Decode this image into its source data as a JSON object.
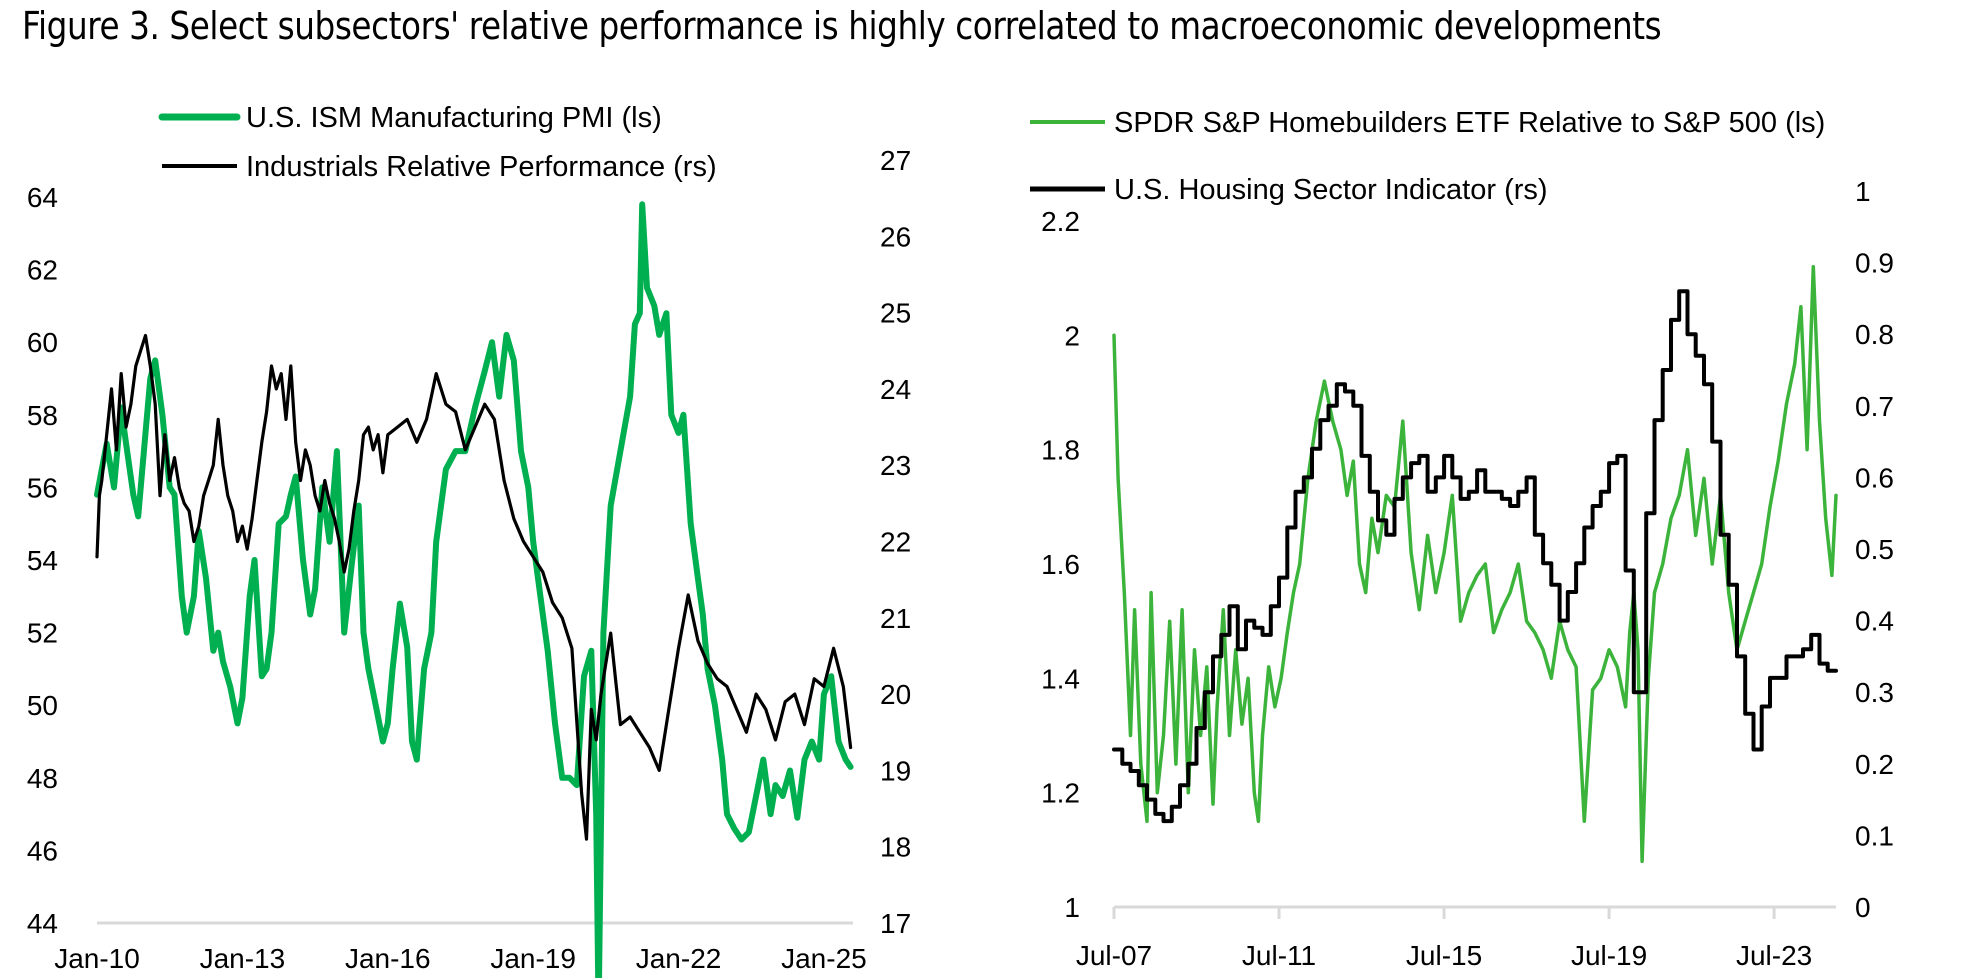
{
  "title": "Figure 3. Select subsectors' relative performance is highly correlated to macroeconomic developments",
  "colors": {
    "pmi_green": "#00B050",
    "homebuilders_green": "#3CB43C",
    "black": "#000000",
    "axis": "#D9D9D9"
  },
  "chart_data": [
    {
      "type": "line",
      "legend_position": "top",
      "x_tick_labels": [
        "Jan-10",
        "Jan-13",
        "Jan-16",
        "Jan-19",
        "Jan-22",
        "Jan-25"
      ],
      "x_range": [
        2010.0,
        2025.6
      ],
      "y_left": {
        "range": [
          44,
          64
        ],
        "ticks": [
          44,
          46,
          48,
          50,
          52,
          54,
          56,
          58,
          60,
          62,
          64
        ]
      },
      "y_right": {
        "range": [
          17,
          27
        ],
        "ticks": [
          17,
          18,
          19,
          20,
          21,
          22,
          23,
          24,
          25,
          26,
          27
        ]
      },
      "grid": false,
      "series": [
        {
          "name": "U.S. ISM Manufacturing PMI (ls)",
          "axis": "left",
          "color": "#00B050",
          "x": [
            2010.0,
            2010.1,
            2010.2,
            2010.35,
            2010.5,
            2010.6,
            2010.75,
            2010.85,
            2011.0,
            2011.1,
            2011.2,
            2011.35,
            2011.5,
            2011.6,
            2011.75,
            2011.85,
            2012.0,
            2012.1,
            2012.25,
            2012.4,
            2012.5,
            2012.6,
            2012.75,
            2012.9,
            2013.0,
            2013.15,
            2013.25,
            2013.4,
            2013.5,
            2013.6,
            2013.75,
            2013.9,
            2014.0,
            2014.1,
            2014.25,
            2014.4,
            2014.5,
            2014.65,
            2014.8,
            2014.95,
            2015.1,
            2015.25,
            2015.4,
            2015.5,
            2015.6,
            2015.75,
            2015.9,
            2016.0,
            2016.1,
            2016.25,
            2016.4,
            2016.5,
            2016.6,
            2016.75,
            2016.9,
            2017.0,
            2017.2,
            2017.4,
            2017.6,
            2017.8,
            2018.0,
            2018.15,
            2018.3,
            2018.45,
            2018.6,
            2018.75,
            2018.9,
            2019.0,
            2019.15,
            2019.3,
            2019.45,
            2019.6,
            2019.75,
            2019.9,
            2020.05,
            2020.2,
            2020.3,
            2020.35,
            2020.45,
            2020.6,
            2020.8,
            2021.0,
            2021.1,
            2021.2,
            2021.25,
            2021.35,
            2021.5,
            2021.6,
            2021.75,
            2021.85,
            2022.0,
            2022.1,
            2022.25,
            2022.4,
            2022.5,
            2022.6,
            2022.75,
            2022.9,
            2023.0,
            2023.15,
            2023.3,
            2023.45,
            2023.6,
            2023.75,
            2023.9,
            2024.0,
            2024.15,
            2024.3,
            2024.45,
            2024.6,
            2024.75,
            2024.9,
            2025.0,
            2025.15,
            2025.3,
            2025.45,
            2025.55
          ],
          "y": [
            55.8,
            56.5,
            57.2,
            56.0,
            58.2,
            57.2,
            55.8,
            55.2,
            57.5,
            59.0,
            59.5,
            58.0,
            56.0,
            55.8,
            53.0,
            52.0,
            53.0,
            54.8,
            53.5,
            51.5,
            52.0,
            51.2,
            50.5,
            49.5,
            50.2,
            53.0,
            54.0,
            50.8,
            51.0,
            52.0,
            55.0,
            55.2,
            55.8,
            56.3,
            54.0,
            52.5,
            53.2,
            56.0,
            54.5,
            57.0,
            52.0,
            53.8,
            55.5,
            52.0,
            51.0,
            50.0,
            49.0,
            49.5,
            51.0,
            52.8,
            51.6,
            49.0,
            48.5,
            51.0,
            52.0,
            54.5,
            56.5,
            57.0,
            57.0,
            58.2,
            59.2,
            60.0,
            58.5,
            60.2,
            59.5,
            57.0,
            56.0,
            54.5,
            53.0,
            51.5,
            49.5,
            48.0,
            48.0,
            47.8,
            50.8,
            51.5,
            47.0,
            41.5,
            52.0,
            55.5,
            57.0,
            58.5,
            60.5,
            60.8,
            63.8,
            61.5,
            61.0,
            60.2,
            60.8,
            58.0,
            57.5,
            58.0,
            55.0,
            53.5,
            52.5,
            51.0,
            50.0,
            48.5,
            47.0,
            46.6,
            46.3,
            46.5,
            47.5,
            48.5,
            47.0,
            47.8,
            47.5,
            48.2,
            46.9,
            48.5,
            49.0,
            48.5,
            50.3,
            50.8,
            49.0,
            48.5,
            48.3
          ]
        },
        {
          "name": "Industrials Relative Performance (rs)",
          "axis": "right",
          "color": "#000000",
          "x": [
            2010.0,
            2010.05,
            2010.1,
            2010.2,
            2010.3,
            2010.4,
            2010.5,
            2010.6,
            2010.7,
            2010.8,
            2010.9,
            2011.0,
            2011.1,
            2011.2,
            2011.3,
            2011.4,
            2011.5,
            2011.6,
            2011.7,
            2011.8,
            2011.9,
            2012.0,
            2012.1,
            2012.2,
            2012.3,
            2012.4,
            2012.5,
            2012.6,
            2012.7,
            2012.8,
            2012.9,
            2013.0,
            2013.1,
            2013.2,
            2013.3,
            2013.4,
            2013.5,
            2013.6,
            2013.7,
            2013.8,
            2013.9,
            2014.0,
            2014.1,
            2014.2,
            2014.3,
            2014.4,
            2014.5,
            2014.6,
            2014.7,
            2014.8,
            2014.9,
            2015.0,
            2015.1,
            2015.2,
            2015.3,
            2015.4,
            2015.5,
            2015.6,
            2015.7,
            2015.8,
            2015.9,
            2016.0,
            2016.2,
            2016.4,
            2016.6,
            2016.8,
            2017.0,
            2017.2,
            2017.4,
            2017.6,
            2017.8,
            2018.0,
            2018.2,
            2018.4,
            2018.6,
            2018.8,
            2019.0,
            2019.2,
            2019.4,
            2019.6,
            2019.8,
            2020.0,
            2020.1,
            2020.2,
            2020.3,
            2020.4,
            2020.5,
            2020.6,
            2020.7,
            2020.8,
            2021.0,
            2021.2,
            2021.4,
            2021.6,
            2021.8,
            2022.0,
            2022.2,
            2022.4,
            2022.6,
            2022.8,
            2023.0,
            2023.2,
            2023.4,
            2023.6,
            2023.8,
            2024.0,
            2024.2,
            2024.4,
            2024.6,
            2024.8,
            2025.0,
            2025.2,
            2025.4,
            2025.55
          ],
          "y": [
            21.8,
            22.6,
            22.8,
            23.4,
            24.0,
            23.2,
            24.2,
            23.5,
            23.8,
            24.3,
            24.5,
            24.7,
            24.3,
            23.8,
            22.6,
            23.4,
            22.8,
            23.1,
            22.7,
            22.5,
            22.4,
            22.0,
            22.2,
            22.6,
            22.8,
            23.0,
            23.6,
            23.0,
            22.6,
            22.4,
            22.0,
            22.2,
            21.9,
            22.3,
            22.8,
            23.3,
            23.7,
            24.3,
            24.0,
            24.2,
            23.6,
            24.3,
            23.3,
            22.8,
            23.2,
            23.0,
            22.6,
            22.4,
            22.8,
            22.5,
            22.3,
            22.0,
            21.6,
            21.9,
            22.4,
            22.8,
            23.4,
            23.5,
            23.2,
            23.4,
            22.9,
            23.4,
            23.5,
            23.6,
            23.3,
            23.6,
            24.2,
            23.8,
            23.7,
            23.2,
            23.5,
            23.8,
            23.6,
            22.8,
            22.3,
            22.0,
            21.8,
            21.6,
            21.2,
            21.0,
            20.6,
            18.7,
            18.1,
            19.8,
            19.4,
            20.0,
            20.4,
            20.8,
            20.2,
            19.6,
            19.7,
            19.5,
            19.3,
            19.0,
            19.8,
            20.6,
            21.3,
            20.7,
            20.4,
            20.2,
            20.1,
            19.8,
            19.5,
            20.0,
            19.8,
            19.4,
            19.9,
            20.0,
            19.6,
            20.2,
            20.1,
            20.6,
            20.1,
            19.3
          ]
        }
      ]
    },
    {
      "type": "line",
      "legend_position": "top",
      "x_tick_labels": [
        "Jul-07",
        "Jul-11",
        "Jul-15",
        "Jul-19",
        "Jul-23"
      ],
      "x_range": [
        2007.5,
        2025.0
      ],
      "y_left": {
        "range": [
          1,
          2.2
        ],
        "ticks": [
          1,
          1.2,
          1.4,
          1.6,
          1.8,
          2,
          2.2
        ]
      },
      "y_right": {
        "range": [
          0,
          1
        ],
        "ticks": [
          0,
          0.1,
          0.2,
          0.3,
          0.4,
          0.5,
          0.6,
          0.7,
          0.8,
          0.9,
          1
        ]
      },
      "grid": false,
      "series": [
        {
          "name": "SPDR S&P Homebuilders ETF Relative to S&P 500 (ls)",
          "axis": "left",
          "color": "#3CB43C",
          "x": [
            2007.5,
            2007.6,
            2007.75,
            2007.9,
            2008.0,
            2008.15,
            2008.3,
            2008.4,
            2008.55,
            2008.7,
            2008.85,
            2009.0,
            2009.15,
            2009.3,
            2009.45,
            2009.6,
            2009.75,
            2009.9,
            2010.0,
            2010.15,
            2010.3,
            2010.45,
            2010.6,
            2010.75,
            2010.9,
            2011.0,
            2011.1,
            2011.25,
            2011.4,
            2011.55,
            2011.7,
            2011.85,
            2012.0,
            2012.2,
            2012.4,
            2012.6,
            2012.8,
            2013.0,
            2013.15,
            2013.3,
            2013.45,
            2013.6,
            2013.75,
            2013.9,
            2014.1,
            2014.3,
            2014.5,
            2014.7,
            2014.9,
            2015.1,
            2015.3,
            2015.5,
            2015.7,
            2015.9,
            2016.1,
            2016.3,
            2016.5,
            2016.7,
            2016.9,
            2017.1,
            2017.3,
            2017.5,
            2017.7,
            2017.9,
            2018.1,
            2018.3,
            2018.5,
            2018.7,
            2018.9,
            2019.1,
            2019.3,
            2019.5,
            2019.7,
            2019.9,
            2020.0,
            2020.1,
            2020.2,
            2020.3,
            2020.45,
            2020.6,
            2020.8,
            2021.0,
            2021.2,
            2021.4,
            2021.6,
            2021.8,
            2022.0,
            2022.2,
            2022.4,
            2022.6,
            2022.8,
            2023.0,
            2023.2,
            2023.4,
            2023.6,
            2023.8,
            2024.0,
            2024.15,
            2024.3,
            2024.45,
            2024.6,
            2024.75,
            2024.9,
            2025.0
          ],
          "y": [
            2.0,
            1.75,
            1.55,
            1.3,
            1.52,
            1.25,
            1.15,
            1.55,
            1.2,
            1.3,
            1.5,
            1.25,
            1.52,
            1.2,
            1.45,
            1.3,
            1.42,
            1.18,
            1.35,
            1.52,
            1.3,
            1.45,
            1.32,
            1.4,
            1.2,
            1.15,
            1.3,
            1.42,
            1.35,
            1.4,
            1.48,
            1.55,
            1.6,
            1.75,
            1.85,
            1.92,
            1.85,
            1.8,
            1.72,
            1.78,
            1.6,
            1.55,
            1.68,
            1.62,
            1.72,
            1.7,
            1.85,
            1.62,
            1.52,
            1.65,
            1.55,
            1.62,
            1.72,
            1.5,
            1.55,
            1.58,
            1.6,
            1.48,
            1.52,
            1.55,
            1.6,
            1.5,
            1.48,
            1.45,
            1.4,
            1.5,
            1.45,
            1.42,
            1.15,
            1.38,
            1.4,
            1.45,
            1.42,
            1.35,
            1.48,
            1.55,
            1.45,
            1.08,
            1.4,
            1.55,
            1.6,
            1.68,
            1.72,
            1.8,
            1.65,
            1.75,
            1.6,
            1.72,
            1.55,
            1.45,
            1.5,
            1.55,
            1.6,
            1.7,
            1.78,
            1.88,
            1.95,
            2.05,
            1.8,
            2.12,
            1.85,
            1.68,
            1.58,
            1.72
          ]
        },
        {
          "name": "U.S. Housing Sector Indicator (rs)",
          "axis": "right",
          "color": "#000000",
          "x": [
            2007.5,
            2007.7,
            2007.9,
            2008.1,
            2008.3,
            2008.5,
            2008.7,
            2008.9,
            2009.1,
            2009.3,
            2009.5,
            2009.7,
            2009.9,
            2010.1,
            2010.3,
            2010.5,
            2010.7,
            2010.9,
            2011.1,
            2011.3,
            2011.5,
            2011.7,
            2011.9,
            2012.1,
            2012.3,
            2012.5,
            2012.7,
            2012.9,
            2013.1,
            2013.3,
            2013.5,
            2013.7,
            2013.9,
            2014.1,
            2014.3,
            2014.5,
            2014.7,
            2014.9,
            2015.1,
            2015.3,
            2015.5,
            2015.7,
            2015.9,
            2016.1,
            2016.3,
            2016.5,
            2016.7,
            2016.9,
            2017.1,
            2017.3,
            2017.5,
            2017.7,
            2017.9,
            2018.1,
            2018.3,
            2018.5,
            2018.7,
            2018.9,
            2019.1,
            2019.3,
            2019.5,
            2019.7,
            2019.9,
            2020.1,
            2020.2,
            2020.4,
            2020.6,
            2020.8,
            2021.0,
            2021.2,
            2021.4,
            2021.6,
            2021.8,
            2022.0,
            2022.2,
            2022.4,
            2022.6,
            2022.8,
            2023.0,
            2023.2,
            2023.4,
            2023.6,
            2023.8,
            2024.0,
            2024.2,
            2024.4,
            2024.6,
            2024.8,
            2025.0
          ],
          "y": [
            0.22,
            0.2,
            0.19,
            0.17,
            0.15,
            0.13,
            0.12,
            0.14,
            0.17,
            0.2,
            0.25,
            0.3,
            0.35,
            0.38,
            0.42,
            0.36,
            0.4,
            0.39,
            0.38,
            0.42,
            0.46,
            0.53,
            0.58,
            0.6,
            0.64,
            0.68,
            0.7,
            0.73,
            0.72,
            0.7,
            0.63,
            0.58,
            0.54,
            0.52,
            0.57,
            0.6,
            0.62,
            0.63,
            0.58,
            0.6,
            0.63,
            0.6,
            0.57,
            0.58,
            0.61,
            0.58,
            0.58,
            0.57,
            0.56,
            0.58,
            0.6,
            0.52,
            0.48,
            0.45,
            0.4,
            0.44,
            0.48,
            0.53,
            0.56,
            0.58,
            0.62,
            0.63,
            0.47,
            0.3,
            0.3,
            0.55,
            0.68,
            0.75,
            0.82,
            0.86,
            0.8,
            0.77,
            0.73,
            0.65,
            0.52,
            0.45,
            0.35,
            0.27,
            0.22,
            0.28,
            0.32,
            0.32,
            0.35,
            0.35,
            0.36,
            0.38,
            0.34,
            0.33,
            0.33
          ]
        }
      ]
    }
  ]
}
